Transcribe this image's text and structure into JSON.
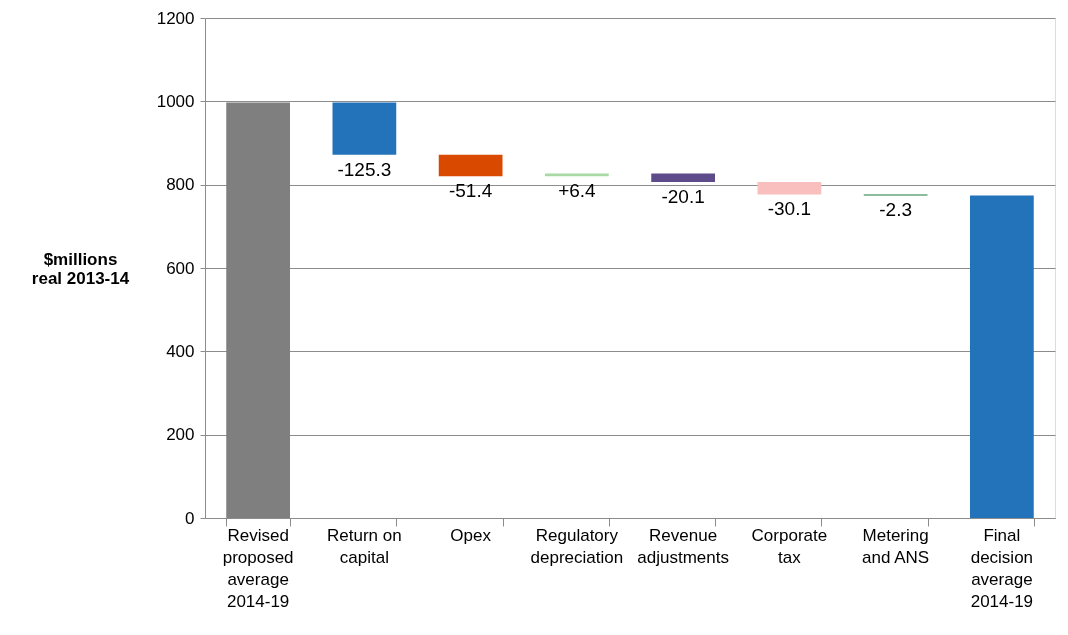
{
  "chart_data": {
    "type": "bar",
    "ylabel": "$millions\nreal 2013-14",
    "categories": [
      "Revised\nproposed\naverage\n2014-19",
      "Return on\ncapital",
      "Opex",
      "Regulatory\ndepreciation",
      "Revenue\nadjustments",
      "Corporate\ntax",
      "Metering\nand ANS",
      "Final\ndecision\naverage\n2014-19"
    ],
    "values": [
      997,
      -125.3,
      -51.4,
      6.4,
      -20.1,
      -30.1,
      -2.3,
      774
    ],
    "base": [
      0,
      997,
      871.7,
      820.3,
      826.7,
      806.6,
      776.5,
      0
    ],
    "colors": [
      "#7f7f7f",
      "#2273b9",
      "#d94a00",
      "#a9d9a3",
      "#5e4b8a",
      "#f9bebe",
      "#1d7a3c",
      "#2273b9"
    ],
    "value_labels": [
      null,
      "-125.3",
      "-51.4",
      "+6.4",
      "-20.1",
      "-30.1",
      "-2.3",
      null
    ],
    "ylim": [
      0,
      1200
    ],
    "yticks": [
      0,
      200,
      400,
      600,
      800,
      1000,
      1200
    ],
    "grid": "y"
  }
}
